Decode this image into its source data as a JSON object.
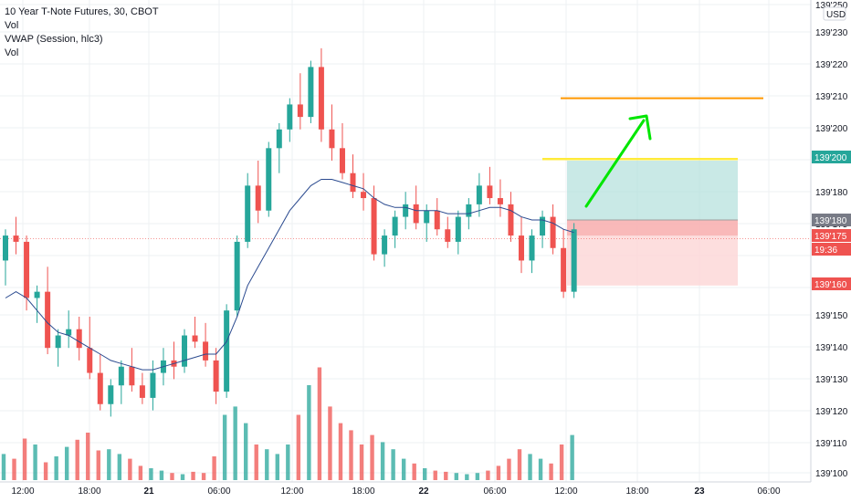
{
  "legend": {
    "title": "10 Year T-Note Futures, 30, CBOT",
    "line2": "Vol",
    "line3": "VWAP (Session, hlc3)",
    "line4": "Vol"
  },
  "currency": "USD",
  "colors": {
    "up": "#26a69a",
    "down": "#ef5350",
    "vwap": "#2a4a8f",
    "target": "#ff9800",
    "profit_line": "#ffeb3b",
    "arrow": "#00e600",
    "profit_zone": "#b2dfdb",
    "loss_zone": "#fcd6d6"
  },
  "chart_data": {
    "type": "candlestick",
    "y_tick_labels": [
      "139'250",
      "139'230",
      "139'220",
      "139'210",
      "139'200",
      "139'190",
      "139'180",
      "139'175",
      "139'150",
      "139'140",
      "139'130",
      "139'120",
      "139'110",
      "139'100"
    ],
    "x_tick_labels": [
      "12:00",
      "18:00",
      "21",
      "06:00",
      "12:00",
      "18:00",
      "22",
      "06:00",
      "12:00",
      "18:00",
      "23",
      "06:00"
    ],
    "price_tags": [
      {
        "label": "139'200",
        "color": "#26a69a",
        "price": 139.2
      },
      {
        "label": "139'180",
        "color": "#787b86",
        "price": 139.18
      },
      {
        "label": "139'175",
        "color": "#ef5350",
        "price": 139.175
      },
      {
        "label": "19:36",
        "color": "#ef5350",
        "price": 139.17
      },
      {
        "label": "139'160",
        "color": "#ef5350",
        "price": 139.16
      }
    ],
    "candles": [
      [
        139.168,
        139.178,
        139.16,
        139.176
      ],
      [
        139.176,
        139.182,
        139.17,
        139.174
      ],
      [
        139.174,
        139.176,
        139.152,
        139.156
      ],
      [
        139.156,
        139.16,
        139.148,
        139.158
      ],
      [
        139.158,
        139.166,
        139.138,
        139.14
      ],
      [
        139.14,
        139.146,
        139.134,
        139.144
      ],
      [
        139.144,
        139.152,
        139.14,
        139.146
      ],
      [
        139.146,
        139.15,
        139.136,
        139.14
      ],
      [
        139.14,
        139.15,
        139.13,
        139.132
      ],
      [
        139.132,
        139.138,
        139.12,
        139.122
      ],
      [
        139.122,
        139.13,
        139.118,
        139.128
      ],
      [
        139.128,
        139.136,
        139.122,
        139.134
      ],
      [
        139.134,
        139.14,
        139.126,
        139.128
      ],
      [
        139.128,
        139.132,
        139.122,
        139.124
      ],
      [
        139.124,
        139.136,
        139.12,
        139.132
      ],
      [
        139.132,
        139.14,
        139.128,
        139.136
      ],
      [
        139.136,
        139.142,
        139.13,
        139.134
      ],
      [
        139.134,
        139.146,
        139.132,
        139.144
      ],
      [
        139.144,
        139.15,
        139.14,
        139.142
      ],
      [
        139.142,
        139.148,
        139.134,
        139.136
      ],
      [
        139.136,
        139.14,
        139.122,
        139.126
      ],
      [
        139.126,
        139.154,
        139.124,
        139.152
      ],
      [
        139.152,
        139.176,
        139.15,
        139.174
      ],
      [
        139.174,
        139.196,
        139.172,
        139.192
      ],
      [
        139.192,
        139.2,
        139.18,
        139.184
      ],
      [
        139.184,
        139.206,
        139.182,
        139.204
      ],
      [
        139.204,
        139.212,
        139.196,
        139.21
      ],
      [
        139.21,
        139.22,
        139.206,
        139.218
      ],
      [
        139.218,
        139.228,
        139.21,
        139.214
      ],
      [
        139.214,
        139.232,
        139.212,
        139.23
      ],
      [
        139.23,
        139.236,
        139.206,
        139.21
      ],
      [
        139.21,
        139.218,
        139.2,
        139.204
      ],
      [
        139.204,
        139.212,
        139.194,
        139.196
      ],
      [
        139.196,
        139.202,
        139.188,
        139.19
      ],
      [
        139.19,
        139.196,
        139.184,
        139.188
      ],
      [
        139.188,
        139.192,
        139.168,
        139.17
      ],
      [
        139.17,
        139.178,
        139.166,
        139.176
      ],
      [
        139.176,
        139.184,
        139.172,
        139.182
      ],
      [
        139.182,
        139.19,
        139.178,
        139.186
      ],
      [
        139.186,
        139.192,
        139.178,
        139.18
      ],
      [
        139.18,
        139.186,
        139.174,
        139.184
      ],
      [
        139.184,
        139.188,
        139.176,
        139.178
      ],
      [
        139.178,
        139.182,
        139.172,
        139.174
      ],
      [
        139.174,
        139.184,
        139.17,
        139.182
      ],
      [
        139.182,
        139.188,
        139.178,
        139.186
      ],
      [
        139.186,
        139.196,
        139.182,
        139.192
      ],
      [
        139.192,
        139.198,
        139.186,
        139.188
      ],
      [
        139.188,
        139.194,
        139.182,
        139.186
      ],
      [
        139.186,
        139.19,
        139.174,
        139.176
      ],
      [
        139.176,
        139.182,
        139.164,
        139.168
      ],
      [
        139.168,
        139.178,
        139.164,
        139.176
      ],
      [
        139.176,
        139.184,
        139.172,
        139.182
      ],
      [
        139.182,
        139.186,
        139.17,
        139.172
      ],
      [
        139.172,
        139.178,
        139.156,
        139.158
      ],
      [
        139.158,
        139.18,
        139.156,
        139.178
      ]
    ],
    "vwap": [
      139.156,
      139.158,
      139.156,
      139.152,
      139.148,
      139.145,
      139.144,
      139.142,
      139.14,
      139.138,
      139.136,
      139.135,
      139.134,
      139.133,
      139.133,
      139.134,
      139.135,
      139.136,
      139.137,
      139.138,
      139.138,
      139.142,
      139.15,
      139.16,
      139.166,
      139.172,
      139.178,
      139.184,
      139.188,
      139.192,
      139.194,
      139.194,
      139.193,
      139.192,
      139.191,
      139.188,
      139.186,
      139.185,
      139.185,
      139.184,
      139.184,
      139.184,
      139.183,
      139.183,
      139.183,
      139.184,
      139.185,
      139.185,
      139.184,
      139.182,
      139.181,
      139.181,
      139.18,
      139.178,
      139.177
    ],
    "volume": [
      0.22,
      0.18,
      0.35,
      0.3,
      0.15,
      0.2,
      0.28,
      0.34,
      0.4,
      0.25,
      0.26,
      0.22,
      0.18,
      0.12,
      0.1,
      0.08,
      0.06,
      0.05,
      0.07,
      0.06,
      0.2,
      0.55,
      0.62,
      0.48,
      0.3,
      0.26,
      0.22,
      0.3,
      0.55,
      0.8,
      0.95,
      0.62,
      0.48,
      0.42,
      0.3,
      0.38,
      0.32,
      0.26,
      0.18,
      0.14,
      0.1,
      0.08,
      0.07,
      0.06,
      0.05,
      0.06,
      0.08,
      0.12,
      0.18,
      0.26,
      0.22,
      0.18,
      0.14,
      0.3,
      0.38
    ]
  }
}
